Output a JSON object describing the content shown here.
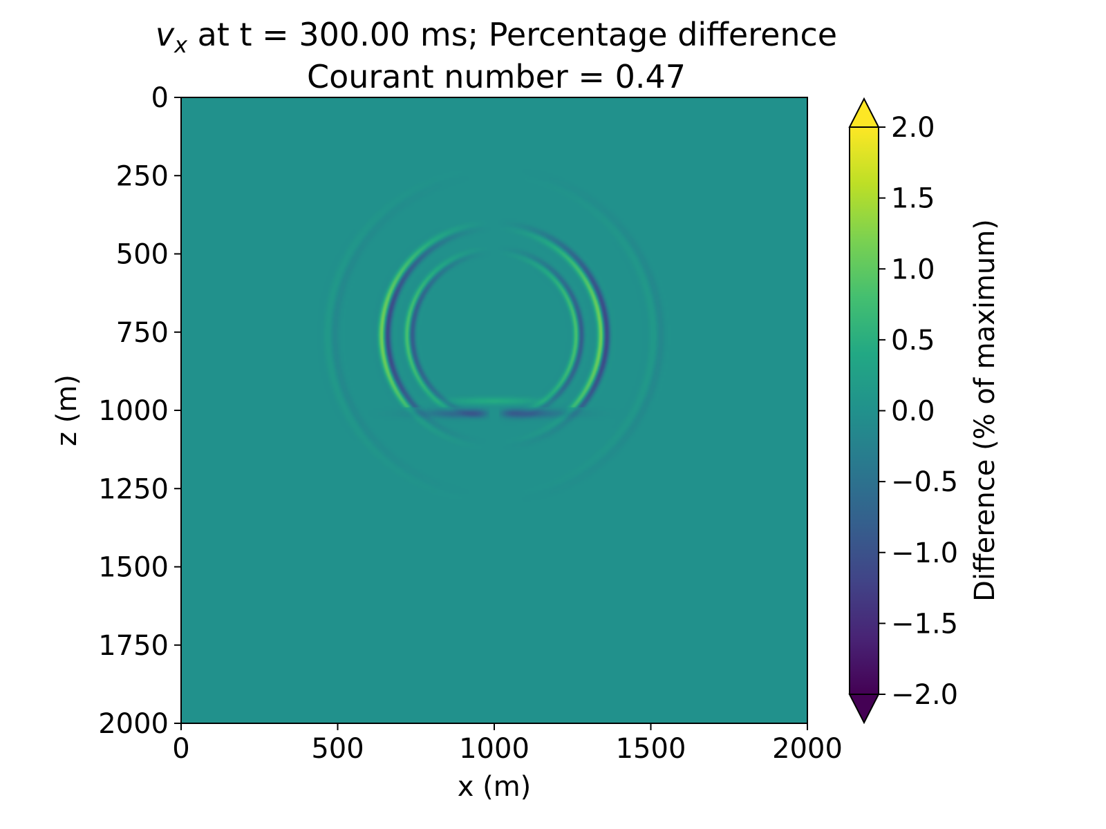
{
  "chart_data": {
    "type": "heatmap",
    "title": {
      "var_main": "v",
      "var_sub": "x",
      "line1_rest": " at t = 300.00 ms; Percentage difference",
      "line2": "Courant number = 0.47"
    },
    "xlabel": "x (m)",
    "ylabel": "z (m)",
    "xlim": [
      0,
      2000
    ],
    "ylim": [
      2000,
      0
    ],
    "x_ticks": [
      0,
      500,
      1000,
      1500,
      2000
    ],
    "y_ticks": [
      0,
      250,
      500,
      750,
      1000,
      1250,
      1500,
      1750,
      2000
    ],
    "x_tick_labels": [
      "0",
      "500",
      "1000",
      "1500",
      "2000"
    ],
    "y_tick_labels": [
      "0",
      "250",
      "500",
      "750",
      "1000",
      "1250",
      "1500",
      "1750",
      "2000"
    ],
    "colorbar": {
      "label": "Difference (% of maximum)",
      "range": [
        -2.0,
        2.0
      ],
      "ticks": [
        2.0,
        1.5,
        1.0,
        0.5,
        0.0,
        -0.5,
        -1.0,
        -1.5,
        -2.0
      ],
      "tick_labels": [
        "2.0",
        "1.5",
        "1.0",
        "0.5",
        "0.0",
        "−0.5",
        "−1.0",
        "−1.5",
        "−2.0"
      ],
      "extend": "both",
      "colormap": "viridis"
    },
    "field": {
      "background_value": 0.0,
      "wavefront_center_m": [
        1000,
        760
      ],
      "outer_ring_radius_m": 350,
      "inner_ring_radius_m": 270,
      "ring_peak_left": 1.2,
      "ring_peak_right": -1.2,
      "bottom_interference_depth_m": 1010
    },
    "colors": {
      "viridis": [
        "#440154",
        "#482475",
        "#414487",
        "#355f8d",
        "#2a788e",
        "#21918c",
        "#22a884",
        "#44bf70",
        "#7ad151",
        "#bddf26",
        "#fde725"
      ]
    }
  }
}
